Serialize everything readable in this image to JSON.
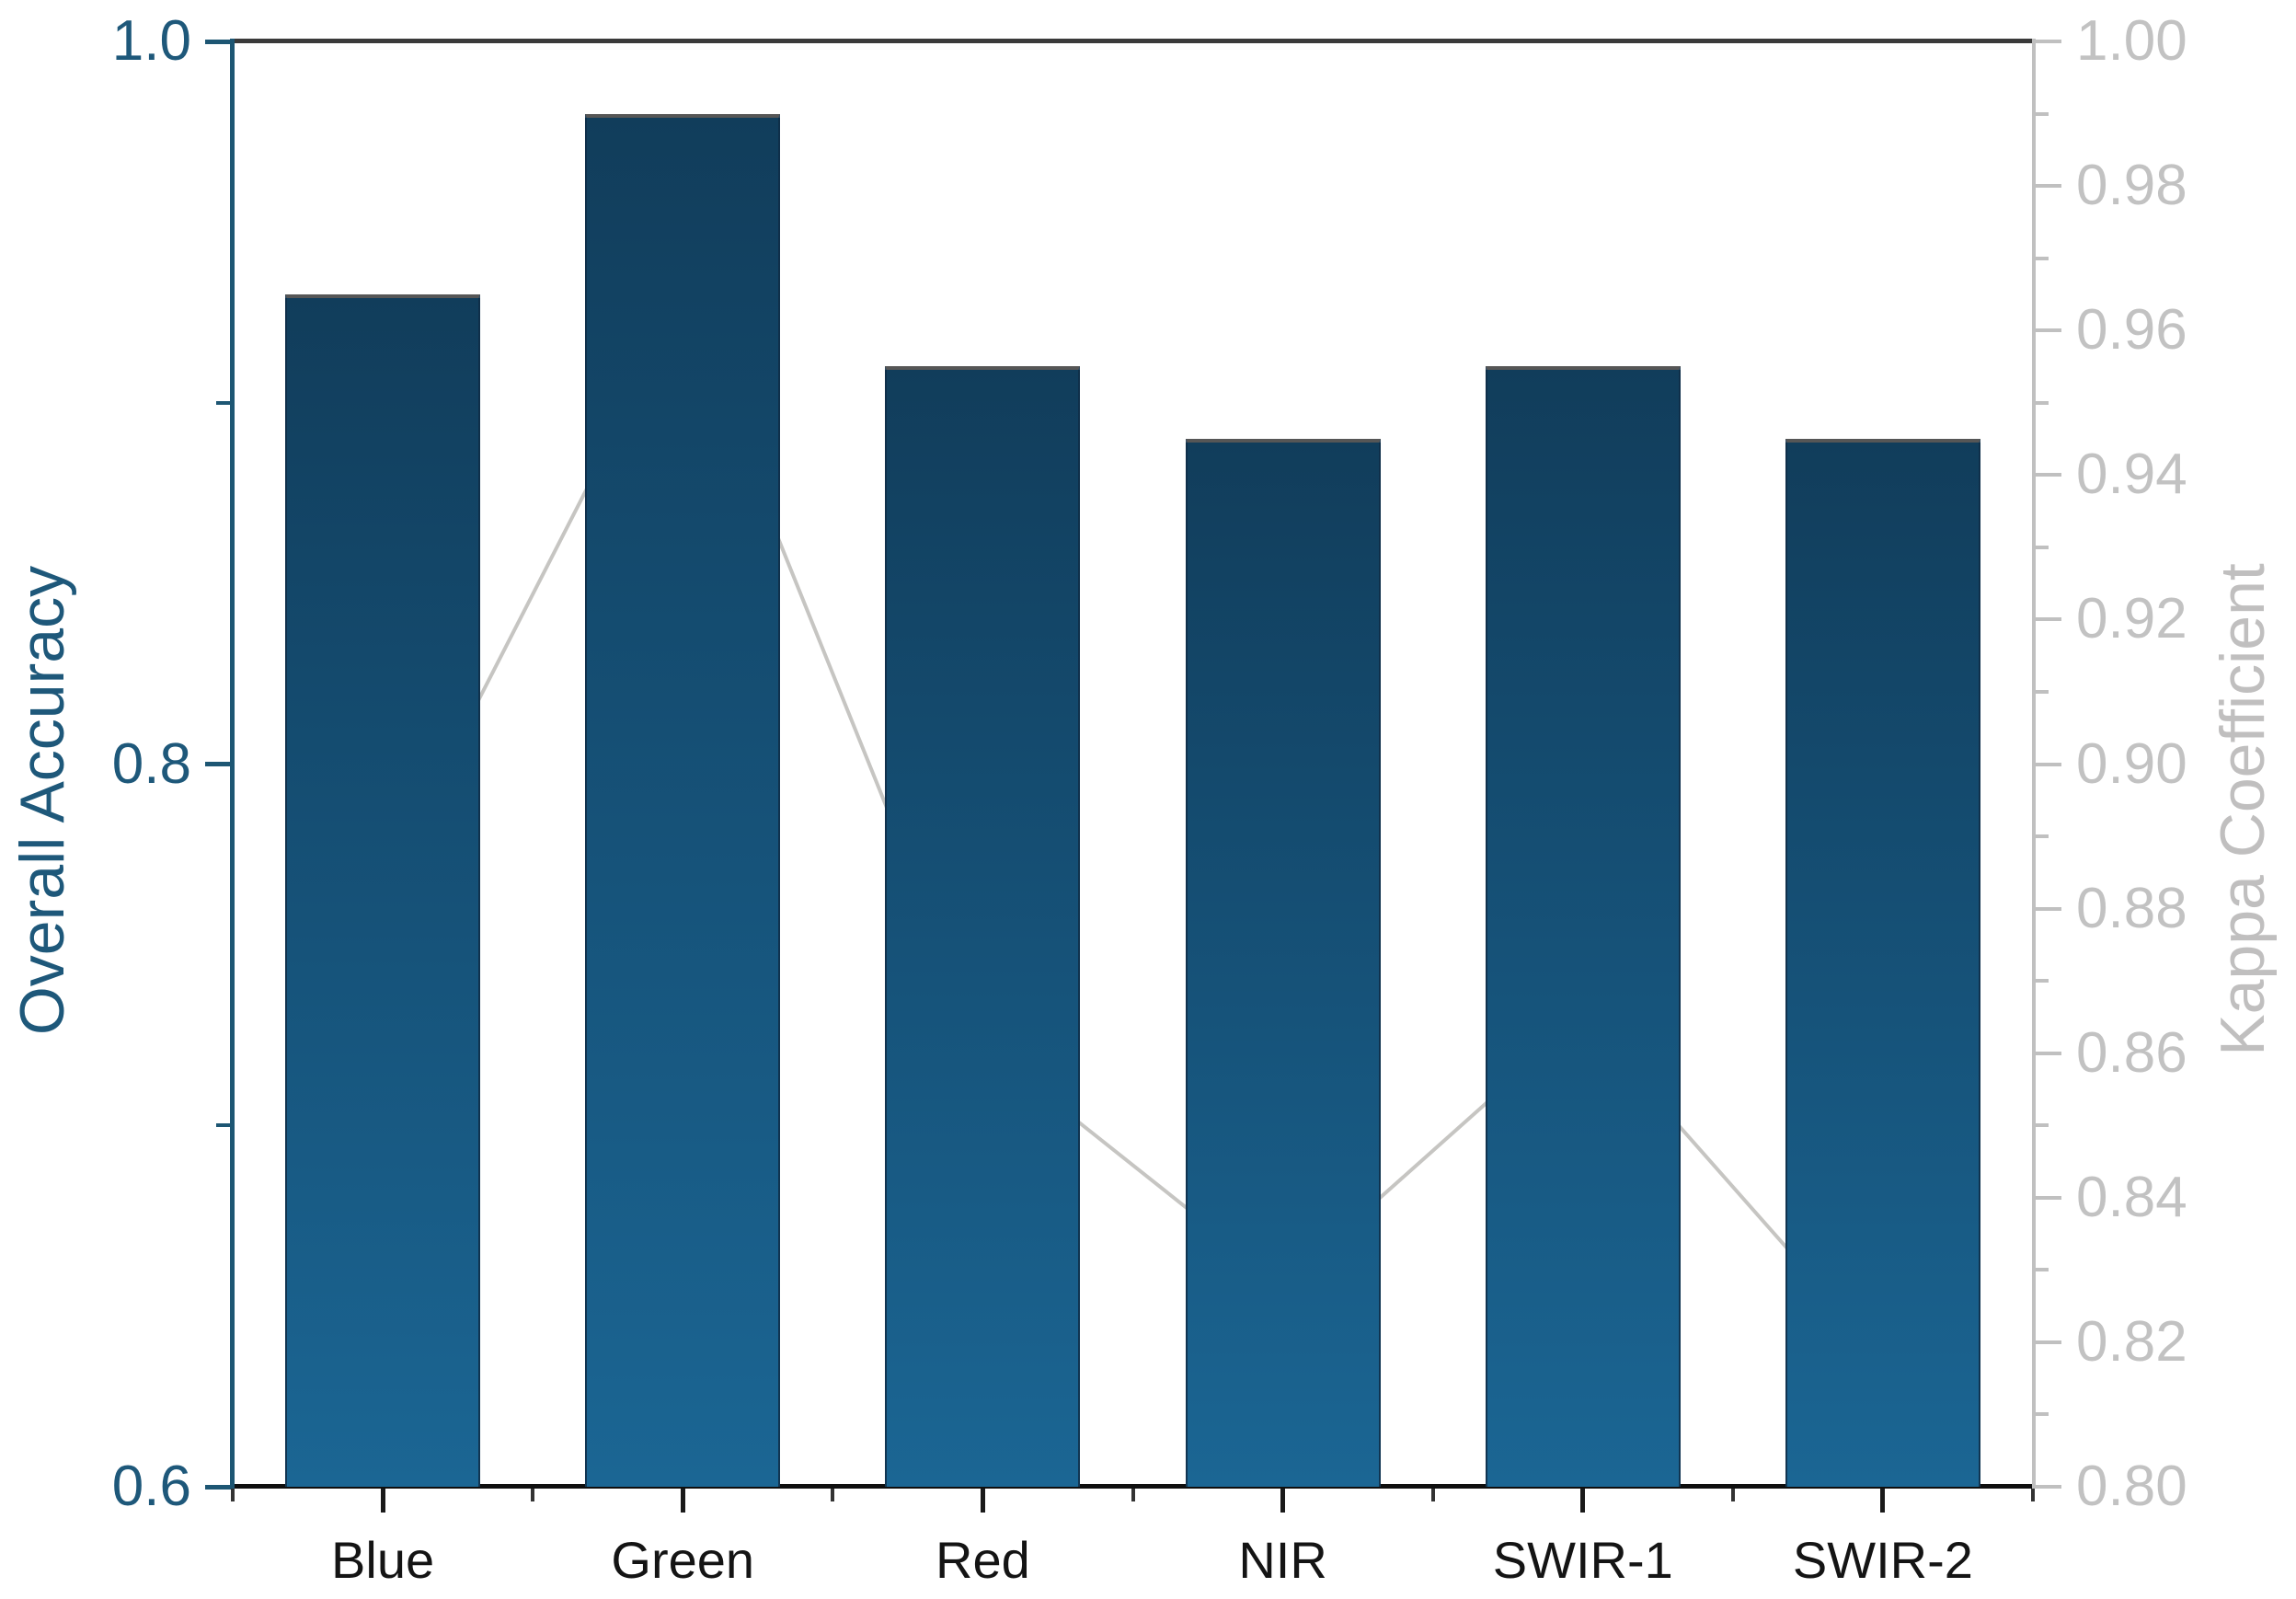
{
  "chart_data": {
    "type": "bar+line",
    "categories": [
      "Blue",
      "Green",
      "Red",
      "NIR",
      "SWIR-1",
      "SWIR-2"
    ],
    "series": [
      {
        "name": "Overall Accuracy",
        "type": "bar",
        "axis": "left",
        "values": [
          0.93,
          0.98,
          0.91,
          0.89,
          0.91,
          0.89
        ]
      },
      {
        "name": "Kappa Coefficient",
        "type": "line",
        "axis": "right",
        "values": [
          0.883,
          0.964,
          0.861,
          0.828,
          0.865,
          0.818
        ]
      }
    ],
    "left_axis": {
      "label": "Overall Accuracy",
      "min": 0.6,
      "max": 1.0,
      "major_tick_values": [
        1.0,
        0.8,
        0.6
      ],
      "major_tick_labels": [
        "1.0",
        "0.8",
        "0.6"
      ],
      "minor_tick_values": [
        0.9,
        0.7
      ],
      "color": "#1e587a"
    },
    "right_axis": {
      "label": "Kappa Coefficient",
      "min": 0.8,
      "max": 1.0,
      "major_tick_values": [
        1.0,
        0.98,
        0.96,
        0.94,
        0.92,
        0.9,
        0.88,
        0.86,
        0.84,
        0.82,
        0.8
      ],
      "major_tick_labels": [
        "1.00",
        "0.98",
        "0.96",
        "0.94",
        "0.92",
        "0.90",
        "0.88",
        "0.86",
        "0.84",
        "0.82",
        "0.80"
      ],
      "minor_tick_values": [
        0.99,
        0.97,
        0.95,
        0.93,
        0.91,
        0.89,
        0.87,
        0.85,
        0.83,
        0.81
      ],
      "color": "#c2c2c2"
    },
    "x_axis": {
      "tick_label_color": "#141414"
    },
    "style": {
      "bar_gradient_top": "#113d5b",
      "bar_gradient_bottom": "#1b6694",
      "bar_top_edge": "#565656",
      "line_color": "#c6c5c2",
      "marker_color": "#cbcac7",
      "top_spine": "#3a3a3a",
      "bottom_spine": "#0f0f0f",
      "left_spine": "#1d5673",
      "right_spine": "#c0c0c0",
      "legend": "none",
      "grid": "off"
    }
  }
}
